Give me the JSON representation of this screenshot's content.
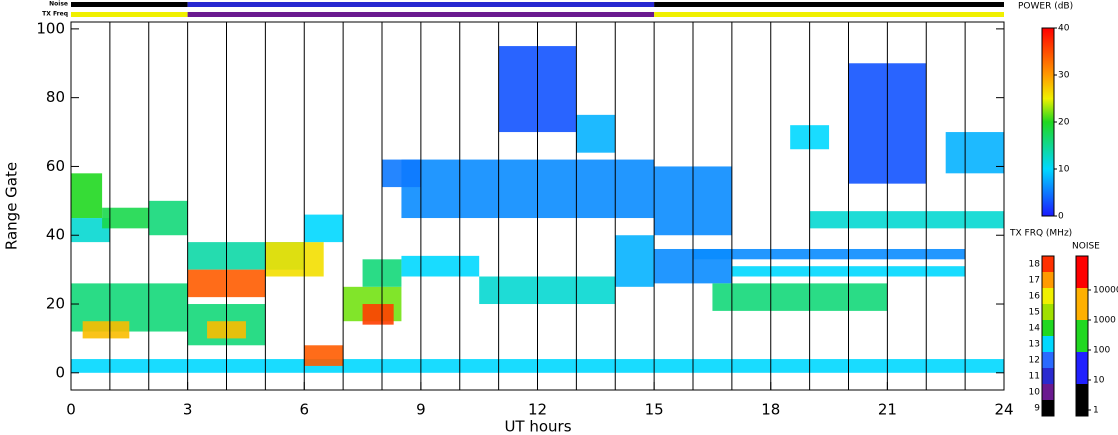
{
  "chart_data": {
    "type": "heatmap",
    "xlabel": "UT hours",
    "ylabel": "Range Gate",
    "xlim": [
      0,
      24
    ],
    "ylim": [
      -5,
      102
    ],
    "xticks": [
      0,
      3,
      6,
      9,
      12,
      15,
      18,
      21,
      24
    ],
    "minor_xticks": [
      0,
      1,
      2,
      3,
      4,
      5,
      6,
      7,
      8,
      9,
      10,
      11,
      12,
      13,
      14,
      15,
      16,
      17,
      18,
      19,
      20,
      21,
      22,
      23,
      24
    ],
    "yticks": [
      0,
      20,
      40,
      60,
      80,
      100
    ],
    "power_scale": {
      "label": "POWER (dB)",
      "lim": [
        0,
        40
      ],
      "ticks": [
        0,
        10,
        20,
        30,
        40
      ],
      "stops": [
        [
          0,
          "#1a1aff"
        ],
        [
          10,
          "#00d8ff"
        ],
        [
          20,
          "#20d820"
        ],
        [
          25,
          "#f0f000"
        ],
        [
          30,
          "#ff9a00"
        ],
        [
          40,
          "#ff0000"
        ]
      ]
    },
    "tx_freq_scale": {
      "label": "TX FRQ (MHz)",
      "ticks": [
        9,
        10,
        11,
        12,
        13,
        14,
        15,
        16,
        17,
        18
      ],
      "colors": [
        "#000000",
        "#6a1a8f",
        "#2a2acf",
        "#2a6aff",
        "#00d8ff",
        "#20d820",
        "#a0e000",
        "#f0f000",
        "#ff9a00",
        "#ff3000"
      ]
    },
    "noise_scale": {
      "label": "NOISE",
      "ticks": [
        1,
        10,
        100,
        1000,
        10000
      ],
      "colors": [
        "#000000",
        "#2020ff",
        "#20d820",
        "#ffb000",
        "#ff0000"
      ]
    },
    "noise_bar": {
      "label": "Noise",
      "segments": [
        {
          "x": [
            0,
            3
          ],
          "color": "#000000"
        },
        {
          "x": [
            3,
            15
          ],
          "color": "#2828d0"
        },
        {
          "x": [
            15,
            24
          ],
          "color": "#000000"
        }
      ]
    },
    "freq_bar": {
      "label": "TX Freq",
      "segments": [
        {
          "x": [
            0,
            3
          ],
          "color": "#f0f000"
        },
        {
          "x": [
            3,
            15
          ],
          "color": "#6a1a8f"
        },
        {
          "x": [
            15,
            24
          ],
          "color": "#f0f000"
        }
      ]
    },
    "cells": [
      {
        "x": [
          0,
          24
        ],
        "y": [
          0,
          4
        ],
        "value": 10
      },
      {
        "x": [
          0,
          0.8
        ],
        "y": [
          45,
          58
        ],
        "value": 20
      },
      {
        "x": [
          0,
          1
        ],
        "y": [
          38,
          45
        ],
        "value": 12
      },
      {
        "x": [
          0.8,
          2
        ],
        "y": [
          42,
          48
        ],
        "value": 18
      },
      {
        "x": [
          2,
          3
        ],
        "y": [
          40,
          50
        ],
        "value": 16
      },
      {
        "x": [
          0,
          3
        ],
        "y": [
          12,
          26
        ],
        "value": 16
      },
      {
        "x": [
          0.3,
          1.5
        ],
        "y": [
          10,
          15
        ],
        "value": 28
      },
      {
        "x": [
          3,
          6
        ],
        "y": [
          30,
          38
        ],
        "value": 14
      },
      {
        "x": [
          3,
          5
        ],
        "y": [
          8,
          20
        ],
        "value": 16
      },
      {
        "x": [
          3.5,
          4.5
        ],
        "y": [
          10,
          15
        ],
        "value": 28
      },
      {
        "x": [
          3,
          5
        ],
        "y": [
          22,
          30
        ],
        "value": 34
      },
      {
        "x": [
          5,
          6.5
        ],
        "y": [
          28,
          38
        ],
        "value": 26
      },
      {
        "x": [
          6,
          7
        ],
        "y": [
          38,
          46
        ],
        "value": 10
      },
      {
        "x": [
          6,
          7
        ],
        "y": [
          2,
          8
        ],
        "value": 34
      },
      {
        "x": [
          7,
          8.5
        ],
        "y": [
          15,
          25
        ],
        "value": 22
      },
      {
        "x": [
          7.5,
          8.3
        ],
        "y": [
          14,
          20
        ],
        "value": 36
      },
      {
        "x": [
          7.5,
          8.5
        ],
        "y": [
          25,
          33
        ],
        "value": 16
      },
      {
        "x": [
          8.5,
          10.5
        ],
        "y": [
          28,
          34
        ],
        "value": 10
      },
      {
        "x": [
          10.5,
          14
        ],
        "y": [
          20,
          28
        ],
        "value": 12
      },
      {
        "x": [
          14,
          15
        ],
        "y": [
          25,
          40
        ],
        "value": 8
      },
      {
        "x": [
          8.5,
          15
        ],
        "y": [
          45,
          62
        ],
        "value": 6
      },
      {
        "x": [
          8,
          9
        ],
        "y": [
          54,
          62
        ],
        "value": 5
      },
      {
        "x": [
          11,
          13
        ],
        "y": [
          70,
          95
        ],
        "value": 3
      },
      {
        "x": [
          13,
          14
        ],
        "y": [
          64,
          75
        ],
        "value": 8
      },
      {
        "x": [
          15,
          17
        ],
        "y": [
          40,
          60
        ],
        "value": 6
      },
      {
        "x": [
          15,
          17
        ],
        "y": [
          26,
          36
        ],
        "value": 6
      },
      {
        "x": [
          16,
          23
        ],
        "y": [
          33,
          36
        ],
        "value": 6
      },
      {
        "x": [
          16.5,
          21
        ],
        "y": [
          18,
          26
        ],
        "value": 16
      },
      {
        "x": [
          17,
          23
        ],
        "y": [
          28,
          31
        ],
        "value": 10
      },
      {
        "x": [
          19,
          24
        ],
        "y": [
          42,
          47
        ],
        "value": 12
      },
      {
        "x": [
          18.5,
          19.5
        ],
        "y": [
          65,
          72
        ],
        "value": 10
      },
      {
        "x": [
          20,
          22
        ],
        "y": [
          55,
          90
        ],
        "value": 3
      },
      {
        "x": [
          22.5,
          24
        ],
        "y": [
          58,
          70
        ],
        "value": 8
      }
    ]
  }
}
